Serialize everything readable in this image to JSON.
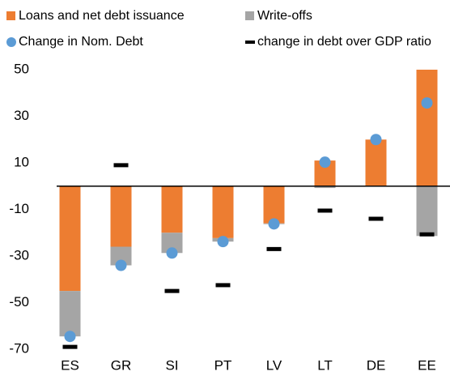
{
  "chart_data": {
    "type": "bar",
    "stacked": true,
    "categories": [
      "ES",
      "GR",
      "SI",
      "PT",
      "LV",
      "LT",
      "DE",
      "EE"
    ],
    "series": [
      {
        "name": "Loans and net debt issuance",
        "color": "#ed7d31",
        "kind": "bar",
        "values": [
          -45,
          -26,
          -20,
          -22.3,
          -16,
          11,
          20,
          50
        ]
      },
      {
        "name": "Write-offs",
        "color": "#a5a5a5",
        "kind": "bar",
        "values": [
          -19.5,
          -8,
          -8.7,
          -1.5,
          -0.3,
          -0.8,
          0,
          -21.4
        ]
      },
      {
        "name": "Change in Nom. Debt",
        "color": "#5b9bd5",
        "kind": "dot",
        "values": [
          -64.5,
          -34,
          -28.7,
          -23.8,
          -16.2,
          10.3,
          20,
          35.7
        ]
      },
      {
        "name": "change in debt over GDP ratio",
        "color": "#000000",
        "kind": "dash",
        "values": [
          -69,
          9,
          -45,
          -42.5,
          -27,
          -10.5,
          -14,
          -20.7
        ]
      }
    ],
    "ylim": [
      -70,
      50
    ],
    "yticks": [
      -70,
      -50,
      -30,
      -10,
      10,
      30,
      50
    ]
  }
}
